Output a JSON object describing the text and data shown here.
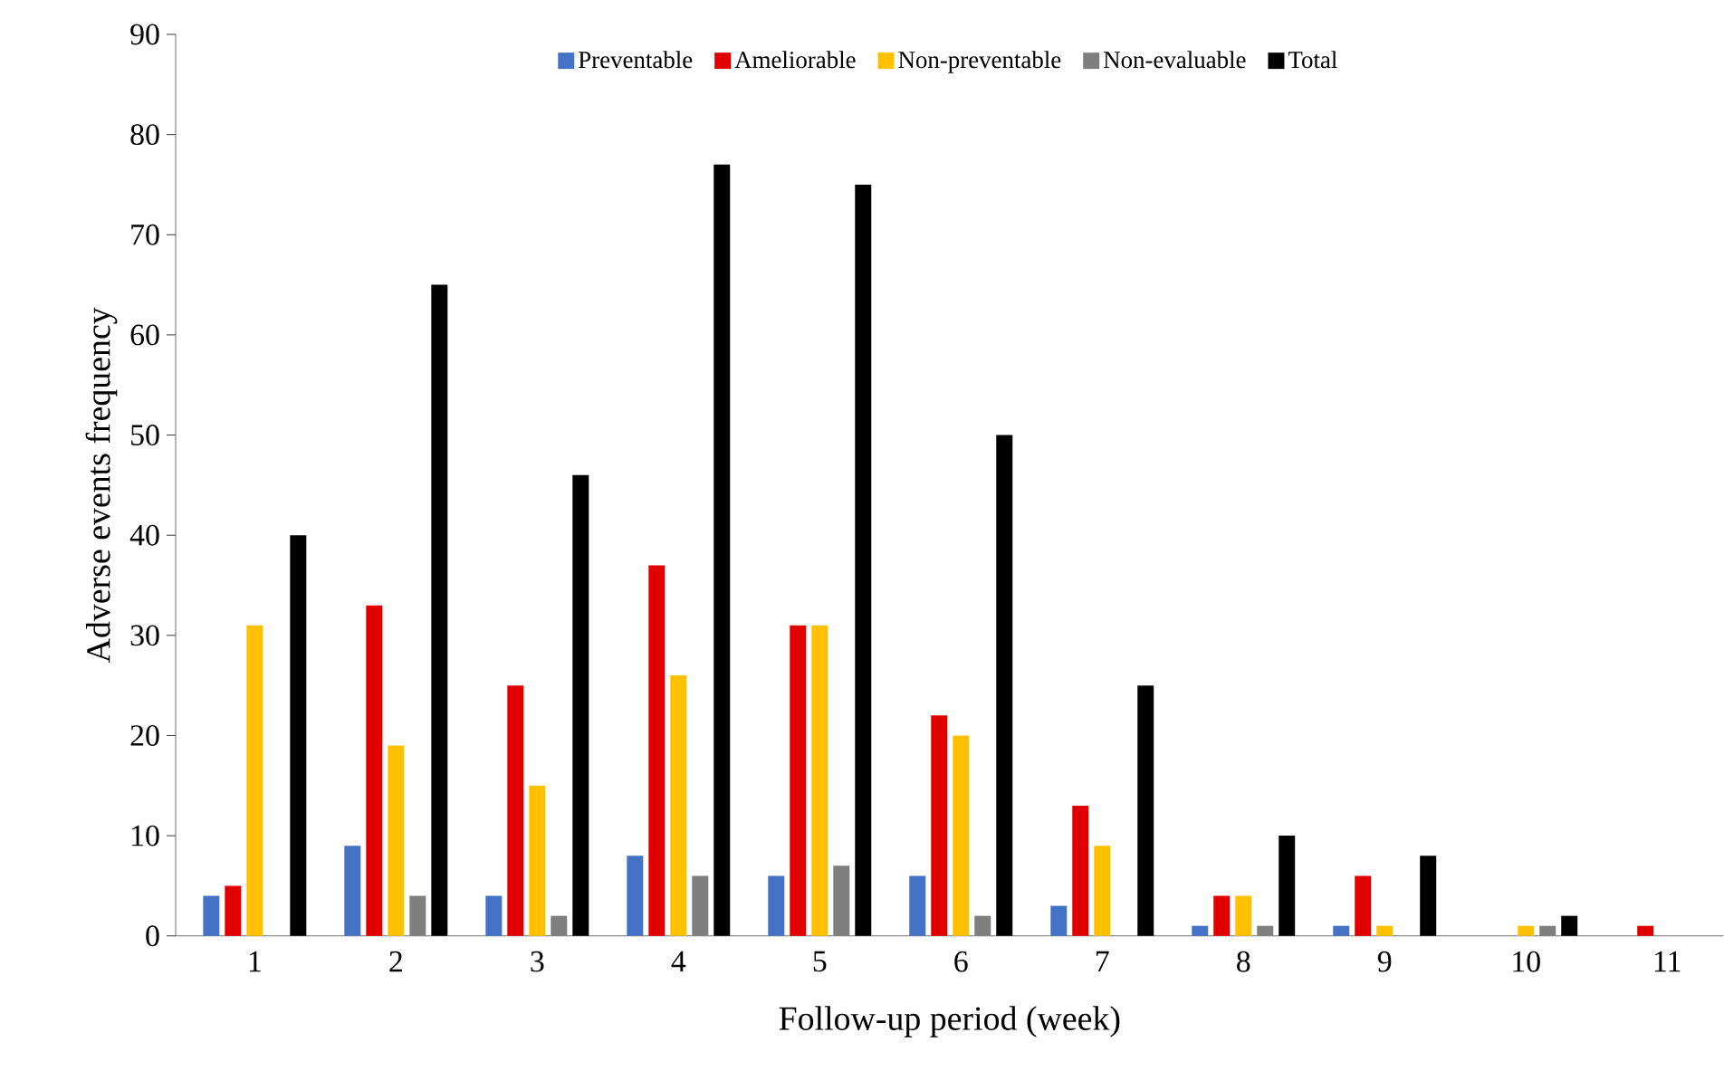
{
  "chart_data": {
    "type": "bar",
    "xlabel": "Follow-up period (week)",
    "ylabel": "Adverse events frequency",
    "categories": [
      "1",
      "2",
      "3",
      "4",
      "5",
      "6",
      "7",
      "8",
      "9",
      "10",
      "11"
    ],
    "series": [
      {
        "name": "Preventable",
        "color": "#4472c4",
        "values": [
          4,
          9,
          4,
          8,
          6,
          6,
          3,
          1,
          1,
          0,
          0
        ]
      },
      {
        "name": "Ameliorable",
        "color": "#e00000",
        "values": [
          5,
          33,
          25,
          37,
          31,
          22,
          13,
          4,
          6,
          0,
          1
        ]
      },
      {
        "name": "Non-preventable",
        "color": "#ffc000",
        "values": [
          31,
          19,
          15,
          26,
          31,
          20,
          9,
          4,
          1,
          1,
          0
        ]
      },
      {
        "name": "Non-evaluable",
        "color": "#7f7f7f",
        "values": [
          0,
          4,
          2,
          6,
          7,
          2,
          0,
          1,
          0,
          1,
          0
        ]
      },
      {
        "name": "Total",
        "color": "#000000",
        "values": [
          40,
          65,
          46,
          77,
          75,
          50,
          25,
          10,
          8,
          2,
          null
        ]
      }
    ],
    "ylim": [
      0,
      90
    ],
    "yticks": [
      0,
      10,
      20,
      30,
      40,
      50,
      60,
      70,
      80,
      90
    ],
    "grid": false,
    "legend": "top"
  }
}
